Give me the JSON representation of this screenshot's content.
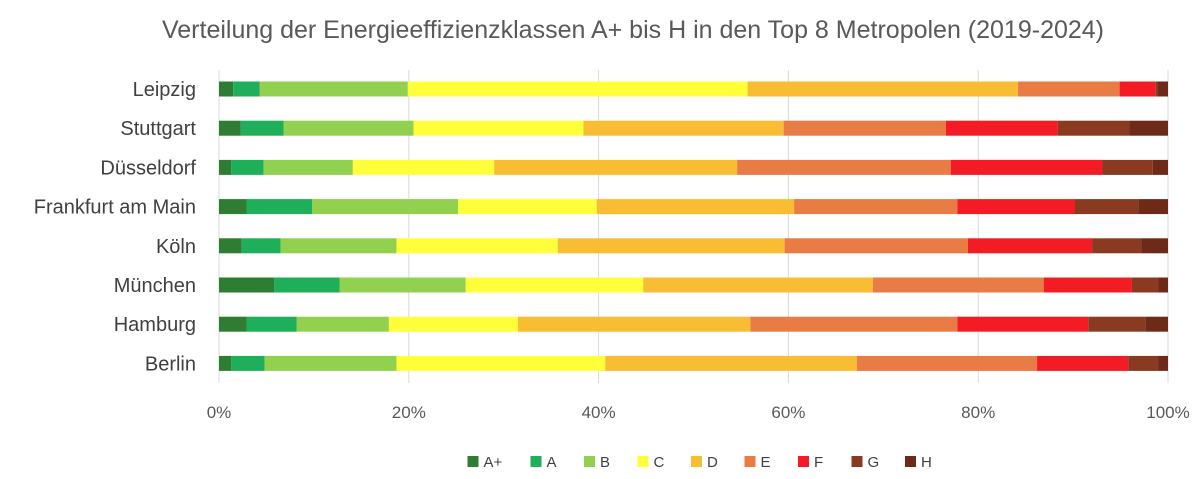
{
  "chart_data": {
    "type": "bar",
    "orientation": "horizontal",
    "stacked": "percent",
    "title": "Verteilung der Energieeffizienzklassen A+ bis H in den Top 8 Metropolen (2019-2024)",
    "categories": [
      "Leipzig",
      "Stuttgart",
      "Düsseldorf",
      "Frankfurt am Main",
      "Köln",
      "München",
      "Hamburg",
      "Berlin"
    ],
    "x_ticks": [
      "0%",
      "20%",
      "40%",
      "60%",
      "80%",
      "100%"
    ],
    "xlim": [
      0,
      100
    ],
    "grid": true,
    "legend_position": "bottom",
    "series": [
      {
        "name": "A+",
        "color": "#2e7d32",
        "values": [
          1.5,
          2.3,
          1.3,
          2.9,
          2.4,
          5.8,
          2.9,
          1.3
        ]
      },
      {
        "name": "A",
        "color": "#1fae5a",
        "values": [
          2.8,
          4.5,
          3.4,
          6.9,
          4.1,
          6.9,
          5.3,
          3.5
        ]
      },
      {
        "name": "B",
        "color": "#92d050",
        "values": [
          15.6,
          13.7,
          9.4,
          15.4,
          12.2,
          13.3,
          9.7,
          13.9
        ]
      },
      {
        "name": "C",
        "color": "#ffff3a",
        "values": [
          35.8,
          17.9,
          14.9,
          14.6,
          17.0,
          18.7,
          13.6,
          22.0
        ]
      },
      {
        "name": "D",
        "color": "#f9bd33",
        "values": [
          28.5,
          21.1,
          25.6,
          20.8,
          23.9,
          24.2,
          24.5,
          26.5
        ]
      },
      {
        "name": "E",
        "color": "#e97b44",
        "values": [
          10.7,
          17.1,
          22.5,
          17.2,
          19.3,
          18.0,
          21.8,
          19.0
        ]
      },
      {
        "name": "F",
        "color": "#f41c24",
        "values": [
          3.8,
          11.8,
          16.0,
          12.4,
          13.1,
          9.3,
          13.8,
          9.6
        ]
      },
      {
        "name": "G",
        "color": "#8a3a20",
        "values": [
          0.2,
          7.5,
          5.3,
          6.7,
          5.2,
          2.8,
          6.0,
          3.2
        ]
      },
      {
        "name": "H",
        "color": "#6e2a18",
        "values": [
          1.1,
          4.1,
          1.6,
          3.1,
          2.8,
          1.0,
          2.4,
          1.0
        ]
      }
    ]
  }
}
